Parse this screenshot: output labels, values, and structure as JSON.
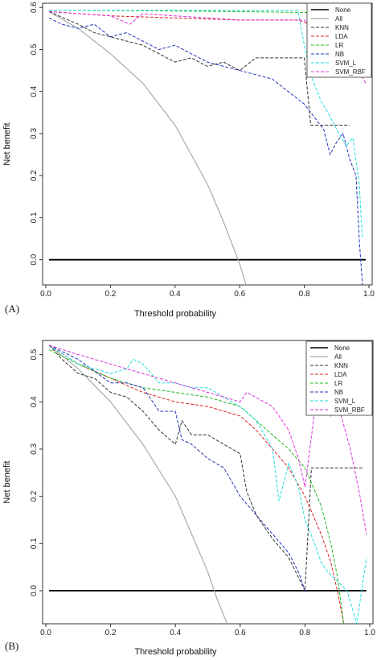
{
  "chart_data": [
    {
      "type": "line",
      "panel_label": "(A)",
      "xlabel": "Threshold probability",
      "ylabel": "Net benefit",
      "xlim": [
        -0.01,
        1.01
      ],
      "ylim": [
        -0.06,
        0.61
      ],
      "xticks": [
        "0.0",
        "0.2",
        "0.4",
        "0.6",
        "0.8",
        "1.0"
      ],
      "xtick_values": [
        0.0,
        0.2,
        0.4,
        0.6,
        0.8,
        1.0
      ],
      "yticks": [
        "0.0",
        "0.1",
        "0.2",
        "0.3",
        "0.4",
        "0.5",
        "0.6"
      ],
      "ytick_values": [
        0.0,
        0.1,
        0.2,
        0.3,
        0.4,
        0.5,
        0.6
      ],
      "grid": false,
      "legend_position": "top-right",
      "series": [
        {
          "name": "None",
          "color": "#000000",
          "dash": "solid",
          "width": 1.8,
          "x": [
            0.01,
            0.99
          ],
          "y": [
            0.0,
            0.0
          ]
        },
        {
          "name": "All",
          "color": "#aaaaaa",
          "dash": "solid",
          "width": 1.2,
          "x": [
            0.01,
            0.1,
            0.2,
            0.3,
            0.4,
            0.5,
            0.55,
            0.6,
            0.62
          ],
          "y": [
            0.59,
            0.55,
            0.49,
            0.42,
            0.32,
            0.18,
            0.09,
            -0.01,
            -0.06
          ]
        },
        {
          "name": "KNN",
          "color": "#333333",
          "dash": "4,2",
          "width": 1,
          "x": [
            0.01,
            0.1,
            0.15,
            0.2,
            0.25,
            0.3,
            0.35,
            0.4,
            0.45,
            0.5,
            0.55,
            0.6,
            0.65,
            0.7,
            0.75,
            0.8,
            0.82,
            0.86,
            0.9,
            0.94
          ],
          "y": [
            0.59,
            0.56,
            0.54,
            0.53,
            0.52,
            0.51,
            0.49,
            0.47,
            0.48,
            0.46,
            0.47,
            0.45,
            0.48,
            0.48,
            0.48,
            0.48,
            0.32,
            0.32,
            0.32,
            0.32
          ]
        },
        {
          "name": "LDA",
          "color": "#dd2222",
          "dash": "4,2",
          "width": 1,
          "x": [
            0.01,
            0.2,
            0.4,
            0.6,
            0.78,
            0.82,
            0.86,
            0.9
          ],
          "y": [
            0.59,
            0.58,
            0.575,
            0.57,
            0.57,
            0.56,
            0.55,
            0.53
          ]
        },
        {
          "name": "LR",
          "color": "#22bb22",
          "dash": "4,2",
          "width": 1,
          "x": [
            0.01,
            0.3,
            0.6,
            0.8,
            0.9
          ],
          "y": [
            0.593,
            0.592,
            0.59,
            0.588,
            0.585
          ]
        },
        {
          "name": "NB",
          "color": "#2233bb",
          "dash": "4,2",
          "width": 1,
          "x": [
            0.01,
            0.05,
            0.1,
            0.15,
            0.2,
            0.25,
            0.3,
            0.35,
            0.4,
            0.45,
            0.5,
            0.55,
            0.6,
            0.65,
            0.7,
            0.75,
            0.8,
            0.83,
            0.86,
            0.88,
            0.9,
            0.92,
            0.94,
            0.96,
            0.97,
            0.98
          ],
          "y": [
            0.575,
            0.56,
            0.55,
            0.56,
            0.53,
            0.54,
            0.52,
            0.5,
            0.51,
            0.49,
            0.47,
            0.46,
            0.45,
            0.44,
            0.43,
            0.4,
            0.37,
            0.34,
            0.31,
            0.25,
            0.28,
            0.3,
            0.24,
            0.2,
            0.05,
            -0.06
          ]
        },
        {
          "name": "SVM_L",
          "color": "#22dddd",
          "dash": "4,2",
          "width": 1,
          "x": [
            0.01,
            0.2,
            0.4,
            0.6,
            0.78,
            0.8,
            0.82,
            0.85,
            0.88,
            0.9,
            0.93,
            0.95,
            0.97,
            0.98
          ],
          "y": [
            0.593,
            0.593,
            0.593,
            0.593,
            0.593,
            0.51,
            0.44,
            0.38,
            0.34,
            0.31,
            0.27,
            0.29,
            0.18,
            0.05
          ]
        },
        {
          "name": "SVM_RBF",
          "color": "#dd33dd",
          "dash": "4,2",
          "width": 1,
          "x": [
            0.01,
            0.2,
            0.26,
            0.3,
            0.4,
            0.5,
            0.6,
            0.7,
            0.8,
            0.84,
            0.88,
            0.92,
            0.96,
            0.99
          ],
          "y": [
            0.59,
            0.58,
            0.56,
            0.585,
            0.58,
            0.575,
            0.57,
            0.57,
            0.57,
            0.54,
            0.52,
            0.5,
            0.46,
            0.42
          ]
        }
      ]
    },
    {
      "type": "line",
      "panel_label": "(B)",
      "xlabel": "Threshold probability",
      "ylabel": "Net benefit",
      "xlim": [
        -0.01,
        1.01
      ],
      "ylim": [
        -0.07,
        0.53
      ],
      "xticks": [
        "0.0",
        "0.2",
        "0.4",
        "0.6",
        "0.8",
        "1.0"
      ],
      "xtick_values": [
        0.0,
        0.2,
        0.4,
        0.6,
        0.8,
        1.0
      ],
      "yticks": [
        "0.0",
        "0.1",
        "0.2",
        "0.3",
        "0.4",
        "0.5"
      ],
      "ytick_values": [
        0.0,
        0.1,
        0.2,
        0.3,
        0.4,
        0.5
      ],
      "grid": false,
      "legend_position": "top-right",
      "series": [
        {
          "name": "None",
          "color": "#000000",
          "dash": "solid",
          "width": 1.8,
          "x": [
            0.01,
            0.99
          ],
          "y": [
            0.0,
            0.0
          ]
        },
        {
          "name": "All",
          "color": "#aaaaaa",
          "dash": "solid",
          "width": 1.2,
          "x": [
            0.01,
            0.1,
            0.2,
            0.3,
            0.4,
            0.45,
            0.5,
            0.53,
            0.56
          ],
          "y": [
            0.52,
            0.47,
            0.4,
            0.31,
            0.2,
            0.12,
            0.04,
            -0.02,
            -0.07
          ]
        },
        {
          "name": "KNN",
          "color": "#333333",
          "dash": "4,2",
          "width": 1,
          "x": [
            0.01,
            0.05,
            0.1,
            0.15,
            0.2,
            0.25,
            0.3,
            0.35,
            0.4,
            0.42,
            0.45,
            0.5,
            0.55,
            0.6,
            0.62,
            0.65,
            0.7,
            0.75,
            0.8,
            0.82,
            0.86,
            0.9,
            0.94,
            0.98
          ],
          "y": [
            0.52,
            0.49,
            0.46,
            0.45,
            0.42,
            0.41,
            0.38,
            0.34,
            0.31,
            0.36,
            0.33,
            0.33,
            0.31,
            0.29,
            0.21,
            0.16,
            0.11,
            0.07,
            0.0,
            0.26,
            0.26,
            0.26,
            0.26,
            0.26
          ]
        },
        {
          "name": "LDA",
          "color": "#dd2222",
          "dash": "4,2",
          "width": 1,
          "x": [
            0.01,
            0.1,
            0.2,
            0.3,
            0.4,
            0.5,
            0.6,
            0.65,
            0.7,
            0.75,
            0.8,
            0.85,
            0.88,
            0.9,
            0.92
          ],
          "y": [
            0.52,
            0.48,
            0.45,
            0.42,
            0.4,
            0.39,
            0.37,
            0.34,
            0.3,
            0.26,
            0.2,
            0.12,
            0.06,
            0.0,
            -0.07
          ]
        },
        {
          "name": "LR",
          "color": "#22bb22",
          "dash": "4,2",
          "width": 1,
          "x": [
            0.01,
            0.1,
            0.2,
            0.3,
            0.4,
            0.5,
            0.6,
            0.65,
            0.7,
            0.75,
            0.8,
            0.85,
            0.88,
            0.9,
            0.92
          ],
          "y": [
            0.51,
            0.48,
            0.45,
            0.43,
            0.42,
            0.41,
            0.39,
            0.36,
            0.33,
            0.3,
            0.26,
            0.18,
            0.1,
            0.03,
            -0.07
          ]
        },
        {
          "name": "NB",
          "color": "#2233bb",
          "dash": "4,2",
          "width": 1,
          "x": [
            0.01,
            0.1,
            0.2,
            0.25,
            0.3,
            0.35,
            0.4,
            0.42,
            0.45,
            0.5,
            0.55,
            0.6,
            0.65,
            0.7,
            0.75,
            0.78,
            0.8
          ],
          "y": [
            0.52,
            0.49,
            0.44,
            0.44,
            0.43,
            0.38,
            0.38,
            0.32,
            0.31,
            0.28,
            0.26,
            0.2,
            0.16,
            0.12,
            0.08,
            0.04,
            0.0
          ]
        },
        {
          "name": "SVM_L",
          "color": "#22dddd",
          "dash": "4,2",
          "width": 1,
          "x": [
            0.01,
            0.1,
            0.2,
            0.25,
            0.27,
            0.3,
            0.35,
            0.4,
            0.45,
            0.5,
            0.55,
            0.6,
            0.65,
            0.7,
            0.72,
            0.75,
            0.78,
            0.8,
            0.83,
            0.85,
            0.87,
            0.9,
            0.93,
            0.96,
            0.99
          ],
          "y": [
            0.52,
            0.48,
            0.46,
            0.47,
            0.49,
            0.48,
            0.44,
            0.44,
            0.43,
            0.43,
            0.41,
            0.39,
            0.36,
            0.3,
            0.19,
            0.27,
            0.22,
            0.15,
            0.1,
            0.06,
            0.04,
            0.02,
            0.0,
            -0.07,
            0.07
          ]
        },
        {
          "name": "SVM_RBF",
          "color": "#dd33dd",
          "dash": "4,2",
          "width": 1,
          "x": [
            0.01,
            0.1,
            0.2,
            0.3,
            0.4,
            0.45,
            0.5,
            0.55,
            0.6,
            0.62,
            0.7,
            0.75,
            0.78,
            0.8,
            0.83,
            0.85,
            0.88,
            0.9,
            0.94,
            0.97,
            0.99
          ],
          "y": [
            0.52,
            0.5,
            0.48,
            0.46,
            0.44,
            0.43,
            0.42,
            0.41,
            0.4,
            0.42,
            0.39,
            0.34,
            0.28,
            0.22,
            0.38,
            0.43,
            0.37,
            0.4,
            0.3,
            0.2,
            0.12
          ]
        }
      ]
    }
  ]
}
